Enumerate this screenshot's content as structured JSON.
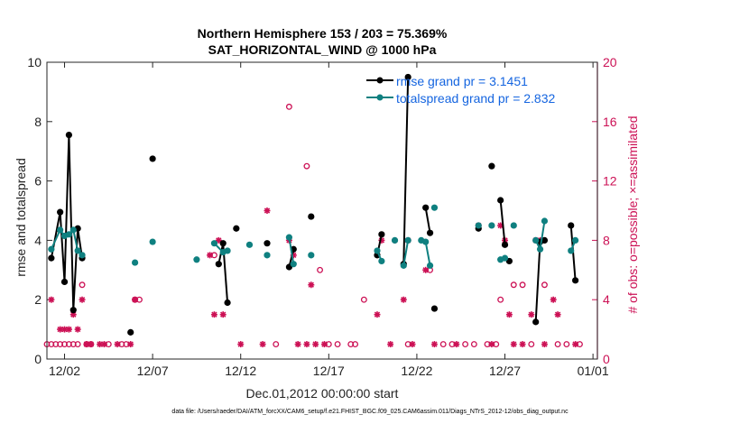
{
  "chart_data": {
    "type": "line",
    "title_line1": "Northern Hemisphere 153 / 203 = 75.369%",
    "title_line2": "SAT_HORIZONTAL_WIND @ 1000 hPa",
    "xlabel": "Dec.01,2012 00:00:00 start",
    "ylabel_left": "rmse and totalspread",
    "ylabel_right": "# of obs: o=possible; ×=assimilated",
    "footer": "data file: /Users/raeder/DAI/ATM_forcXX/CAM6_setup/f.e21.FHIST_BGC.f09_025.CAM6assim.011/Diags_NTrS_2012-12/obs_diag_output.nc",
    "x_range": [
      0,
      31.25
    ],
    "ylim_left": [
      0,
      10
    ],
    "ylim_right": [
      0,
      20
    ],
    "x_ticks": [
      {
        "x": 1.0,
        "label": "12/02"
      },
      {
        "x": 6.0,
        "label": "12/07"
      },
      {
        "x": 11.0,
        "label": "12/12"
      },
      {
        "x": 16.0,
        "label": "12/17"
      },
      {
        "x": 21.0,
        "label": "12/22"
      },
      {
        "x": 26.0,
        "label": "12/27"
      },
      {
        "x": 31.0,
        "label": "01/01"
      }
    ],
    "y_ticks_left": [
      {
        "v": 0,
        "label": "0"
      },
      {
        "v": 2,
        "label": "2"
      },
      {
        "v": 4,
        "label": "4"
      },
      {
        "v": 6,
        "label": "6"
      },
      {
        "v": 8,
        "label": "8"
      },
      {
        "v": 10,
        "label": "10"
      }
    ],
    "y_ticks_right": [
      {
        "v": 0,
        "label": "0"
      },
      {
        "v": 4,
        "label": "4"
      },
      {
        "v": 8,
        "label": "8"
      },
      {
        "v": 12,
        "label": "12"
      },
      {
        "v": 16,
        "label": "16"
      },
      {
        "v": 20,
        "label": "20"
      }
    ],
    "series": [
      {
        "name": "rmse grand pr = 3.1451",
        "color": "#000000",
        "segments": [
          [
            [
              0.25,
              3.4
            ],
            [
              0.75,
              4.95
            ],
            [
              1.0,
              2.6
            ],
            [
              1.25,
              7.55
            ],
            [
              1.5,
              1.65
            ],
            [
              1.75,
              4.4
            ],
            [
              2.0,
              3.4
            ]
          ],
          [
            [
              9.75,
              3.2
            ],
            [
              10.0,
              3.9
            ],
            [
              10.25,
              1.9
            ]
          ],
          [
            [
              13.75,
              3.1
            ],
            [
              14.0,
              3.7
            ]
          ],
          [
            [
              18.75,
              3.5
            ],
            [
              19.0,
              4.2
            ]
          ],
          [
            [
              20.25,
              3.2
            ],
            [
              20.5,
              9.5
            ]
          ],
          [
            [
              21.5,
              5.1
            ],
            [
              21.75,
              4.25
            ]
          ],
          [
            [
              25.75,
              5.35
            ],
            [
              26.0,
              3.85
            ]
          ],
          [
            [
              27.75,
              1.25
            ],
            [
              28.0,
              3.95
            ],
            [
              28.25,
              4.0
            ]
          ],
          [
            [
              29.75,
              4.5
            ],
            [
              30.0,
              2.65
            ]
          ]
        ],
        "points": [
          [
            6.0,
            6.75
          ],
          [
            4.75,
            0.9
          ],
          [
            10.75,
            4.4
          ],
          [
            12.5,
            3.9
          ],
          [
            15.0,
            4.8
          ],
          [
            22.0,
            1.7
          ],
          [
            24.5,
            4.4
          ],
          [
            25.25,
            6.5
          ],
          [
            26.25,
            3.3
          ]
        ]
      },
      {
        "name": "totalspread grand pr = 2.832",
        "color": "#0f8080",
        "segments": [
          [
            [
              0.25,
              3.7
            ],
            [
              0.75,
              4.35
            ],
            [
              1.0,
              4.15
            ],
            [
              1.25,
              4.2
            ],
            [
              1.5,
              4.35
            ],
            [
              1.75,
              3.65
            ],
            [
              2.0,
              3.5
            ]
          ],
          [
            [
              9.5,
              3.9
            ],
            [
              10.0,
              3.6
            ],
            [
              10.25,
              3.65
            ]
          ],
          [
            [
              13.75,
              4.1
            ],
            [
              14.0,
              3.2
            ]
          ],
          [
            [
              18.75,
              3.65
            ],
            [
              19.0,
              3.3
            ]
          ],
          [
            [
              20.25,
              3.15
            ],
            [
              20.5,
              4.0
            ]
          ],
          [
            [
              21.25,
              4.0
            ],
            [
              21.5,
              3.95
            ],
            [
              21.75,
              3.15
            ]
          ],
          [
            [
              25.75,
              3.35
            ],
            [
              26.0,
              3.4
            ]
          ],
          [
            [
              27.75,
              4.0
            ],
            [
              28.0,
              3.7
            ],
            [
              28.25,
              4.65
            ]
          ],
          [
            [
              29.75,
              3.65
            ],
            [
              30.0,
              4.0
            ]
          ]
        ],
        "points": [
          [
            5.0,
            3.25
          ],
          [
            6.0,
            3.95
          ],
          [
            8.5,
            3.35
          ],
          [
            11.5,
            3.85
          ],
          [
            12.5,
            3.5
          ],
          [
            15.0,
            3.5
          ],
          [
            19.75,
            4.0
          ],
          [
            22.0,
            5.1
          ],
          [
            24.5,
            4.5
          ],
          [
            25.25,
            4.5
          ],
          [
            26.5,
            4.5
          ]
        ]
      }
    ],
    "obs_possible": [
      [
        0.0,
        1
      ],
      [
        0.25,
        1
      ],
      [
        0.5,
        1
      ],
      [
        0.75,
        1
      ],
      [
        1.0,
        1
      ],
      [
        1.25,
        1
      ],
      [
        1.5,
        1
      ],
      [
        1.75,
        1
      ],
      [
        2.0,
        5
      ],
      [
        2.25,
        1
      ],
      [
        2.5,
        1
      ],
      [
        3.5,
        1
      ],
      [
        4.25,
        1
      ],
      [
        4.5,
        1
      ],
      [
        5.0,
        4
      ],
      [
        5.25,
        4
      ],
      [
        9.5,
        7
      ],
      [
        13.0,
        1
      ],
      [
        13.75,
        17
      ],
      [
        14.75,
        13
      ],
      [
        15.5,
        6
      ],
      [
        16.0,
        1
      ],
      [
        16.5,
        1
      ],
      [
        17.25,
        1
      ],
      [
        17.5,
        1
      ],
      [
        18.0,
        4
      ],
      [
        19.75,
        8
      ],
      [
        20.5,
        1
      ],
      [
        21.75,
        6
      ],
      [
        22.5,
        1
      ],
      [
        23.0,
        1
      ],
      [
        23.75,
        1
      ],
      [
        24.25,
        1
      ],
      [
        25.0,
        1
      ],
      [
        25.5,
        1
      ],
      [
        25.75,
        4
      ],
      [
        26.5,
        5
      ],
      [
        27.0,
        5
      ],
      [
        27.5,
        1
      ],
      [
        28.25,
        5
      ],
      [
        29.0,
        1
      ],
      [
        29.5,
        1
      ],
      [
        30.25,
        1
      ]
    ],
    "obs_assimilated": [
      [
        0.25,
        4
      ],
      [
        0.75,
        2
      ],
      [
        1.0,
        2
      ],
      [
        1.25,
        2
      ],
      [
        1.5,
        3
      ],
      [
        1.75,
        2
      ],
      [
        2.0,
        4
      ],
      [
        2.25,
        1
      ],
      [
        2.5,
        1
      ],
      [
        3.0,
        1
      ],
      [
        3.25,
        1
      ],
      [
        4.0,
        1
      ],
      [
        4.75,
        1
      ],
      [
        5.0,
        4
      ],
      [
        9.25,
        7
      ],
      [
        9.5,
        3
      ],
      [
        9.75,
        8
      ],
      [
        10.0,
        3
      ],
      [
        11.0,
        1
      ],
      [
        12.25,
        1
      ],
      [
        12.5,
        10
      ],
      [
        13.75,
        8
      ],
      [
        14.0,
        7
      ],
      [
        14.25,
        1
      ],
      [
        14.75,
        1
      ],
      [
        15.0,
        5
      ],
      [
        15.25,
        1
      ],
      [
        15.75,
        1
      ],
      [
        18.75,
        3
      ],
      [
        19.0,
        8
      ],
      [
        19.5,
        1
      ],
      [
        20.25,
        4
      ],
      [
        20.5,
        8
      ],
      [
        20.75,
        1
      ],
      [
        21.5,
        6
      ],
      [
        22.0,
        1
      ],
      [
        23.25,
        1
      ],
      [
        24.5,
        9
      ],
      [
        25.25,
        1
      ],
      [
        25.75,
        9
      ],
      [
        26.0,
        8
      ],
      [
        26.25,
        3
      ],
      [
        26.5,
        1
      ],
      [
        27.0,
        1
      ],
      [
        27.5,
        3
      ],
      [
        27.75,
        8
      ],
      [
        28.0,
        8
      ],
      [
        28.25,
        1
      ],
      [
        28.75,
        4
      ],
      [
        29.0,
        3
      ],
      [
        30.0,
        1
      ]
    ]
  }
}
